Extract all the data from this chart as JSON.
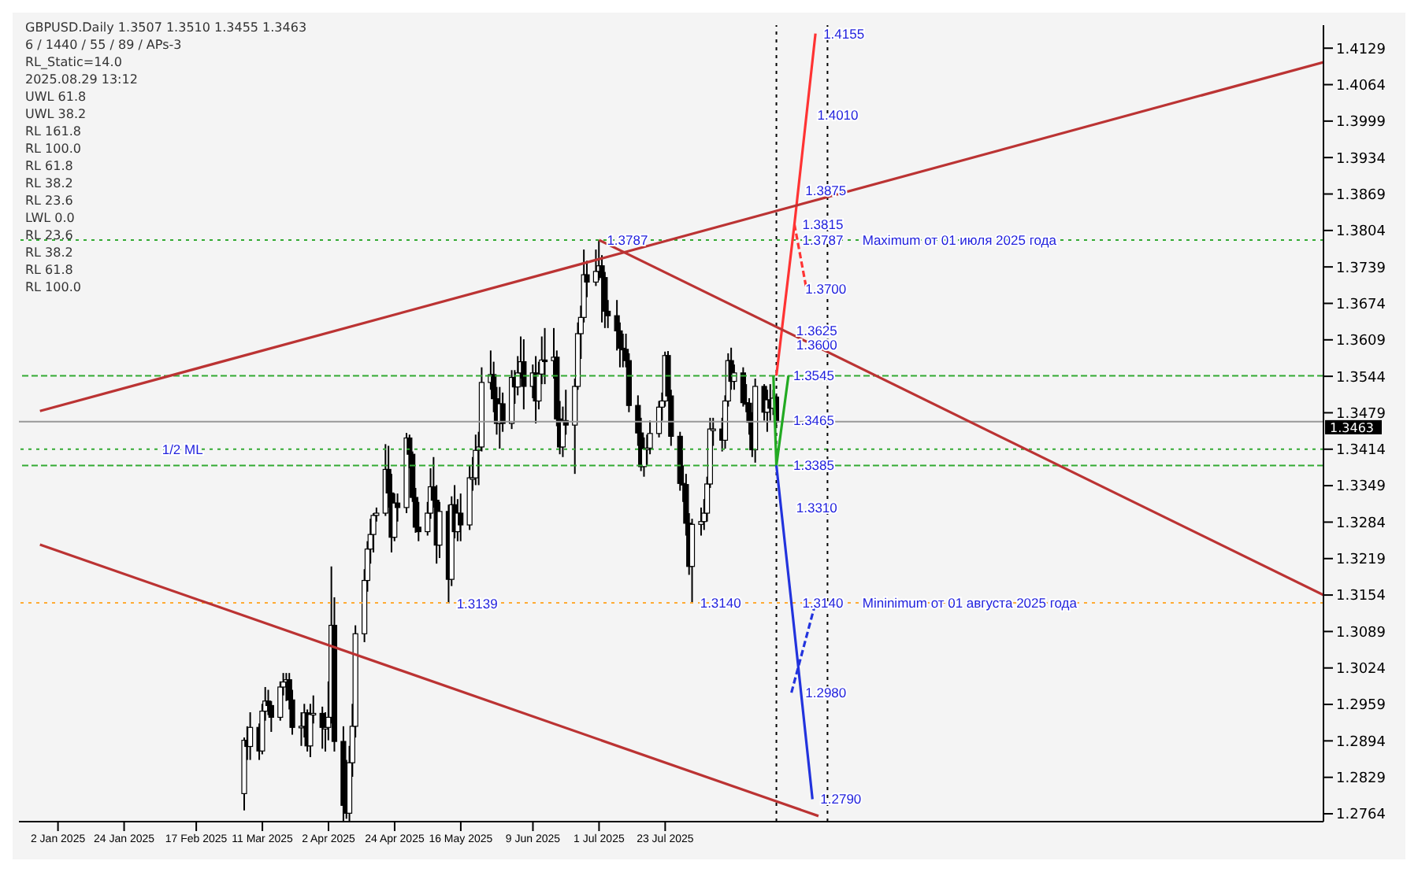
{
  "chart_data": {
    "type": "candlestick",
    "title": "GBPUSD.Daily 1.3507 1.3510 1.3455 1.3463",
    "color": "#000000",
    "x": [
      "2025-03-05",
      "2025-03-06",
      "2025-03-07",
      "2025-03-10",
      "2025-03-11",
      "2025-03-12",
      "2025-03-13",
      "2025-03-14",
      "2025-03-17",
      "2025-03-18",
      "2025-03-19",
      "2025-03-20",
      "2025-03-21",
      "2025-03-24",
      "2025-03-25",
      "2025-03-26",
      "2025-03-27",
      "2025-03-28",
      "2025-03-31",
      "2025-04-01",
      "2025-04-02",
      "2025-04-03",
      "2025-04-04",
      "2025-04-07",
      "2025-04-08",
      "2025-04-09",
      "2025-04-10",
      "2025-04-11",
      "2025-04-14",
      "2025-04-15",
      "2025-04-16",
      "2025-04-17",
      "2025-04-18",
      "2025-04-21",
      "2025-04-22",
      "2025-04-23",
      "2025-04-24",
      "2025-04-25",
      "2025-04-28",
      "2025-04-29",
      "2025-04-30",
      "2025-05-01",
      "2025-05-02",
      "2025-05-05",
      "2025-05-06",
      "2025-05-07",
      "2025-05-08",
      "2025-05-09",
      "2025-05-12",
      "2025-05-13",
      "2025-05-14",
      "2025-05-15",
      "2025-05-16",
      "2025-05-19",
      "2025-05-20",
      "2025-05-21",
      "2025-05-22",
      "2025-05-23",
      "2025-05-26",
      "2025-05-27",
      "2025-05-28",
      "2025-05-29",
      "2025-05-30",
      "2025-06-02",
      "2025-06-03",
      "2025-06-04",
      "2025-06-05",
      "2025-06-06",
      "2025-06-09",
      "2025-06-10",
      "2025-06-11",
      "2025-06-12",
      "2025-06-13",
      "2025-06-16",
      "2025-06-17",
      "2025-06-18",
      "2025-06-19",
      "2025-06-20",
      "2025-06-23",
      "2025-06-24",
      "2025-06-25",
      "2025-06-26",
      "2025-06-27",
      "2025-06-30",
      "2025-07-01",
      "2025-07-02",
      "2025-07-03",
      "2025-07-04",
      "2025-07-07",
      "2025-07-08",
      "2025-07-09",
      "2025-07-10",
      "2025-07-11",
      "2025-07-14",
      "2025-07-15",
      "2025-07-16",
      "2025-07-17",
      "2025-07-18",
      "2025-07-21",
      "2025-07-22",
      "2025-07-23",
      "2025-07-24",
      "2025-07-25",
      "2025-07-28",
      "2025-07-29",
      "2025-07-30",
      "2025-07-31",
      "2025-08-01",
      "2025-08-04",
      "2025-08-05",
      "2025-08-06",
      "2025-08-07",
      "2025-08-08",
      "2025-08-11",
      "2025-08-12",
      "2025-08-13",
      "2025-08-14",
      "2025-08-15",
      "2025-08-18",
      "2025-08-19",
      "2025-08-20",
      "2025-08-21",
      "2025-08-22",
      "2025-08-25",
      "2025-08-26",
      "2025-08-27",
      "2025-08-28",
      "2025-08-29"
    ],
    "ohlc": [
      [
        1.28,
        1.29,
        1.277,
        1.2895
      ],
      [
        1.2895,
        1.292,
        1.286,
        1.2884
      ],
      [
        1.2884,
        1.2945,
        1.286,
        1.2918
      ],
      [
        1.2918,
        1.2925,
        1.286,
        1.2876
      ],
      [
        1.2876,
        1.296,
        1.287,
        1.2947
      ],
      [
        1.2947,
        1.299,
        1.293,
        1.2965
      ],
      [
        1.2965,
        1.2985,
        1.294,
        1.2957
      ],
      [
        1.2957,
        1.2965,
        1.291,
        1.2936
      ],
      [
        1.2936,
        1.3,
        1.293,
        1.299
      ],
      [
        1.299,
        1.3015,
        1.2975,
        1.2999
      ],
      [
        1.2999,
        1.3015,
        1.2965,
        1.3003
      ],
      [
        1.3003,
        1.3015,
        1.295,
        1.2967
      ],
      [
        1.2967,
        1.2985,
        1.2905,
        1.2918
      ],
      [
        1.2918,
        1.2945,
        1.2885,
        1.292
      ],
      [
        1.292,
        1.296,
        1.29,
        1.2944
      ],
      [
        1.2944,
        1.295,
        1.2875,
        1.2885
      ],
      [
        1.2885,
        1.296,
        1.2865,
        1.2941
      ],
      [
        1.2941,
        1.2975,
        1.2925,
        1.2943
      ],
      [
        1.2943,
        1.2955,
        1.288,
        1.2918
      ],
      [
        1.2918,
        1.2945,
        1.2875,
        1.2918
      ],
      [
        1.2918,
        1.3,
        1.2895,
        1.2936
      ],
      [
        1.2936,
        1.3205,
        1.2925,
        1.31
      ],
      [
        1.31,
        1.315,
        1.2875,
        1.2893
      ],
      [
        1.2893,
        1.292,
        1.2751,
        1.2779
      ],
      [
        1.2779,
        1.286,
        1.2755,
        1.2765
      ],
      [
        1.2765,
        1.2885,
        1.2751,
        1.2855
      ],
      [
        1.2855,
        1.296,
        1.283,
        1.292
      ],
      [
        1.292,
        1.31,
        1.29,
        1.3085
      ],
      [
        1.3085,
        1.32,
        1.307,
        1.318
      ],
      [
        1.318,
        1.325,
        1.316,
        1.3236
      ],
      [
        1.3236,
        1.329,
        1.321,
        1.3262
      ],
      [
        1.3262,
        1.33,
        1.323,
        1.3296
      ],
      [
        1.3296,
        1.331,
        1.3285,
        1.33
      ],
      [
        1.33,
        1.3423,
        1.3295,
        1.3378
      ],
      [
        1.3378,
        1.342,
        1.331,
        1.3336
      ],
      [
        1.3336,
        1.337,
        1.323,
        1.3257
      ],
      [
        1.3257,
        1.3335,
        1.325,
        1.3318
      ],
      [
        1.3318,
        1.3335,
        1.3285,
        1.331
      ],
      [
        1.331,
        1.3443,
        1.33,
        1.3434
      ],
      [
        1.3434,
        1.344,
        1.338,
        1.3405
      ],
      [
        1.3405,
        1.341,
        1.332,
        1.3328
      ],
      [
        1.3328,
        1.3345,
        1.3265,
        1.3275
      ],
      [
        1.3275,
        1.332,
        1.325,
        1.3267
      ],
      [
        1.3267,
        1.332,
        1.326,
        1.33
      ],
      [
        1.33,
        1.338,
        1.329,
        1.3347
      ],
      [
        1.3347,
        1.34,
        1.331,
        1.3323
      ],
      [
        1.3323,
        1.335,
        1.321,
        1.3243
      ],
      [
        1.3243,
        1.332,
        1.322,
        1.3303
      ],
      [
        1.3303,
        1.3315,
        1.3139,
        1.3182
      ],
      [
        1.3182,
        1.333,
        1.317,
        1.3315
      ],
      [
        1.3315,
        1.335,
        1.3255,
        1.3267
      ],
      [
        1.3267,
        1.3325,
        1.325,
        1.33
      ],
      [
        1.33,
        1.3335,
        1.325,
        1.3279
      ],
      [
        1.3279,
        1.3385,
        1.327,
        1.3363
      ],
      [
        1.3363,
        1.34,
        1.334,
        1.3363
      ],
      [
        1.3363,
        1.344,
        1.335,
        1.3412
      ],
      [
        1.3412,
        1.3445,
        1.335,
        1.3418
      ],
      [
        1.3418,
        1.356,
        1.341,
        1.3533
      ],
      [
        1.3533,
        1.359,
        1.352,
        1.3547
      ],
      [
        1.3547,
        1.357,
        1.348,
        1.3504
      ],
      [
        1.3504,
        1.3525,
        1.344,
        1.346
      ],
      [
        1.346,
        1.3525,
        1.3415,
        1.3495
      ],
      [
        1.3495,
        1.3515,
        1.3445,
        1.346
      ],
      [
        1.346,
        1.3555,
        1.345,
        1.3542
      ],
      [
        1.3542,
        1.3555,
        1.3495,
        1.3525
      ],
      [
        1.3525,
        1.358,
        1.351,
        1.355
      ],
      [
        1.355,
        1.3615,
        1.354,
        1.357
      ],
      [
        1.357,
        1.361,
        1.3485,
        1.3526
      ],
      [
        1.3526,
        1.3565,
        1.3505,
        1.355
      ],
      [
        1.355,
        1.358,
        1.346,
        1.35
      ],
      [
        1.35,
        1.357,
        1.3485,
        1.3548
      ],
      [
        1.3548,
        1.3615,
        1.353,
        1.3573
      ],
      [
        1.3573,
        1.363,
        1.353,
        1.3572
      ],
      [
        1.3572,
        1.363,
        1.354,
        1.3578
      ],
      [
        1.3578,
        1.359,
        1.3455,
        1.3468
      ],
      [
        1.3468,
        1.35,
        1.3405,
        1.3418
      ],
      [
        1.3418,
        1.349,
        1.34,
        1.3465
      ],
      [
        1.3465,
        1.352,
        1.344,
        1.3457
      ],
      [
        1.3457,
        1.354,
        1.337,
        1.3526
      ],
      [
        1.3526,
        1.364,
        1.352,
        1.362
      ],
      [
        1.362,
        1.367,
        1.3575,
        1.3649
      ],
      [
        1.3649,
        1.377,
        1.364,
        1.3725
      ],
      [
        1.3725,
        1.375,
        1.3685,
        1.3712
      ],
      [
        1.3712,
        1.377,
        1.3705,
        1.3731
      ],
      [
        1.3731,
        1.3787,
        1.3715,
        1.3741
      ],
      [
        1.3741,
        1.376,
        1.364,
        1.372
      ],
      [
        1.372,
        1.373,
        1.363,
        1.366
      ],
      [
        1.366,
        1.368,
        1.363,
        1.3652
      ],
      [
        1.3652,
        1.368,
        1.359,
        1.3625
      ],
      [
        1.3625,
        1.364,
        1.356,
        1.3594
      ],
      [
        1.3594,
        1.362,
        1.356,
        1.3592
      ],
      [
        1.3592,
        1.362,
        1.356,
        1.3572
      ],
      [
        1.3572,
        1.3585,
        1.348,
        1.3492
      ],
      [
        1.3492,
        1.351,
        1.342,
        1.3443
      ],
      [
        1.3443,
        1.347,
        1.3375,
        1.3383
      ],
      [
        1.3383,
        1.3435,
        1.3365,
        1.3415
      ],
      [
        1.3415,
        1.344,
        1.3385,
        1.3416
      ],
      [
        1.3416,
        1.3465,
        1.3405,
        1.3442
      ],
      [
        1.3442,
        1.35,
        1.3435,
        1.3489
      ],
      [
        1.3489,
        1.3515,
        1.3465,
        1.35
      ],
      [
        1.35,
        1.3588,
        1.349,
        1.3581
      ],
      [
        1.3581,
        1.3589,
        1.35,
        1.3509
      ],
      [
        1.3509,
        1.352,
        1.342,
        1.3437
      ],
      [
        1.3437,
        1.3445,
        1.334,
        1.3353
      ],
      [
        1.3353,
        1.3385,
        1.332,
        1.3351
      ],
      [
        1.3351,
        1.337,
        1.326,
        1.3282
      ],
      [
        1.3282,
        1.33,
        1.319,
        1.3205
      ],
      [
        1.3205,
        1.329,
        1.314,
        1.328
      ],
      [
        1.328,
        1.331,
        1.326,
        1.3285
      ],
      [
        1.3285,
        1.3325,
        1.327,
        1.33
      ],
      [
        1.33,
        1.3365,
        1.3285,
        1.3352
      ],
      [
        1.3352,
        1.347,
        1.3345,
        1.345
      ],
      [
        1.345,
        1.347,
        1.342,
        1.345
      ],
      [
        1.345,
        1.347,
        1.341,
        1.343
      ],
      [
        1.343,
        1.351,
        1.3415,
        1.35
      ],
      [
        1.35,
        1.3585,
        1.349,
        1.3572
      ],
      [
        1.3572,
        1.3595,
        1.352,
        1.3535
      ],
      [
        1.3535,
        1.3565,
        1.352,
        1.355
      ],
      [
        1.355,
        1.356,
        1.349,
        1.3497
      ],
      [
        1.3497,
        1.353,
        1.348,
        1.3496
      ],
      [
        1.3496,
        1.3505,
        1.344,
        1.3462
      ],
      [
        1.3462,
        1.348,
        1.34,
        1.3413
      ],
      [
        1.3413,
        1.354,
        1.339,
        1.3526
      ],
      [
        1.3526,
        1.353,
        1.3465,
        1.348
      ],
      [
        1.348,
        1.352,
        1.3445,
        1.3502
      ],
      [
        1.3502,
        1.353,
        1.3465,
        1.3487
      ],
      [
        1.3487,
        1.352,
        1.3475,
        1.3505
      ],
      [
        1.3507,
        1.351,
        1.3455,
        1.3463
      ]
    ],
    "series": [
      {
        "type": "line",
        "color": "#ff3333",
        "x": [
          "2025-08-29",
          "2025-09-04",
          "2025-09-11"
        ],
        "values": [
          1.3545,
          1.3815,
          1.4155
        ]
      },
      {
        "type": "line",
        "color": "#ff3333",
        "line_style": "dashed",
        "x": [
          "2025-09-04",
          "2025-09-08"
        ],
        "values": [
          1.3815,
          1.37
        ]
      },
      {
        "type": "line",
        "color": "#22aa22",
        "x": [
          "2025-08-28",
          "2025-08-29",
          "2025-09-02"
        ],
        "values": [
          1.3545,
          1.3385,
          1.3545
        ]
      },
      {
        "type": "line",
        "color": "#2233dd",
        "x": [
          "2025-08-29",
          "2025-09-03",
          "2025-09-10"
        ],
        "values": [
          1.3385,
          1.314,
          1.279
        ]
      },
      {
        "type": "line",
        "color": "#2233dd",
        "line_style": "dashed",
        "x": [
          "2025-09-03",
          "2025-09-11"
        ],
        "values": [
          1.298,
          1.314
        ]
      },
      {
        "type": "line",
        "color": "#bb3333",
        "x": [
          "2024-12-27",
          "2026-02-27"
        ],
        "values": [
          1.3482,
          1.4104
        ]
      },
      {
        "type": "line",
        "color": "#bb3333",
        "x": [
          "2025-07-01",
          "2026-02-27"
        ],
        "values": [
          1.3787,
          1.3154
        ]
      },
      {
        "type": "line",
        "color": "#bb3333",
        "x": [
          "2024-12-27",
          "2025-09-12"
        ],
        "values": [
          1.3244,
          1.276
        ]
      }
    ],
    "xlim": [
      "2024-12-20",
      "2026-02-27"
    ],
    "xticks": [
      {
        "value": "2025-01-02",
        "label": "2 Jan 2025"
      },
      {
        "value": "2025-01-24",
        "label": "24 Jan 2025"
      },
      {
        "value": "2025-02-17",
        "label": "17 Feb 2025"
      },
      {
        "value": "2025-03-11",
        "label": "11 Mar 2025"
      },
      {
        "value": "2025-04-02",
        "label": "2 Apr 2025"
      },
      {
        "value": "2025-04-24",
        "label": "24 Apr 2025"
      },
      {
        "value": "2025-05-16",
        "label": "16 May 2025"
      },
      {
        "value": "2025-06-09",
        "label": "9 Jun 2025"
      },
      {
        "value": "2025-07-01",
        "label": "1 Jul 2025"
      },
      {
        "value": "2025-07-23",
        "label": "23 Jul 2025"
      }
    ],
    "ylim": [
      1.275,
      1.417
    ],
    "yticks": [
      1.2764,
      1.2829,
      1.2894,
      1.2959,
      1.3024,
      1.3089,
      1.3154,
      1.3219,
      1.3284,
      1.3349,
      1.3414,
      1.3479,
      1.3544,
      1.3609,
      1.3674,
      1.3739,
      1.3804,
      1.3869,
      1.3934,
      1.3999,
      1.4064,
      1.4129
    ],
    "ref_lines": [
      {
        "axis": "y",
        "value": 1.3463,
        "label": "1.3463",
        "color": "#999999",
        "line_style": "solid"
      },
      {
        "axis": "y",
        "value": 1.3545,
        "color": "#33aa33",
        "line_style": "dashed"
      },
      {
        "axis": "y",
        "value": 1.3385,
        "color": "#33aa33",
        "line_style": "dashed"
      },
      {
        "axis": "y",
        "value": 1.3787,
        "color": "#33aa33",
        "line_style": "dotted"
      },
      {
        "axis": "y",
        "value": 1.3414,
        "color": "#33aa33",
        "line_style": "dotted"
      },
      {
        "axis": "y",
        "value": 1.314,
        "color": "#ffaa33",
        "line_style": "dotted"
      },
      {
        "axis": "x",
        "value": "2025-08-29",
        "color": "#000000",
        "line_style": "dotted"
      },
      {
        "axis": "x",
        "value": "2025-09-15",
        "color": "#000000",
        "line_style": "dotted"
      }
    ],
    "annotations": [
      "6 / 1440 / 55 / 89 / APs-3",
      "RL_Static=14.0",
      "2025.08.29 13:12",
      "UWL 61.8",
      "UWL 38.2",
      "RL 161.8",
      "RL 100.0",
      "RL 61.8",
      "RL 38.2",
      "RL 23.6",
      "LWL 0.0",
      "RL 23.6",
      "RL 38.2",
      "RL 61.8",
      "RL 100.0",
      {
        "text": "1.3787",
        "x": "2025-07-01",
        "y": 1.3787
      },
      {
        "text": "1.3139",
        "x": "2025-05-12",
        "y": 1.3139
      },
      {
        "text": "1.3140",
        "x": "2025-08-01",
        "y": 1.314
      },
      {
        "text": "1.4155",
        "x": "2025-09-11",
        "y": 1.4155
      },
      {
        "text": "1.4010",
        "x": "2025-09-09",
        "y": 1.401
      },
      {
        "text": "1.3875",
        "x": "2025-09-05",
        "y": 1.3875
      },
      {
        "text": "1.3815",
        "x": "2025-09-04",
        "y": 1.3815
      },
      {
        "text": "1.3787",
        "x": "2025-09-04",
        "y": 1.3787
      },
      {
        "text": "Maximum от 01 июля 2025 года",
        "x": "2025-09-24",
        "y": 1.3787
      },
      {
        "text": "1.3700",
        "x": "2025-09-05",
        "y": 1.37
      },
      {
        "text": "1.3625",
        "x": "2025-09-02",
        "y": 1.3625
      },
      {
        "text": "1.3600",
        "x": "2025-09-02",
        "y": 1.36
      },
      {
        "text": "1.3545",
        "x": "2025-09-01",
        "y": 1.3545
      },
      {
        "text": "1.3465",
        "x": "2025-09-01",
        "y": 1.3465
      },
      {
        "text": "1.3385",
        "x": "2025-09-01",
        "y": 1.3385
      },
      {
        "text": "1.3310",
        "x": "2025-09-02",
        "y": 1.331
      },
      {
        "text": "1.3140",
        "x": "2025-09-04",
        "y": 1.314
      },
      {
        "text": "Mininimum от 01 августа 2025 года",
        "x": "2025-09-24",
        "y": 1.314
      },
      {
        "text": "1.2980",
        "x": "2025-09-05",
        "y": 1.298
      },
      {
        "text": "1.2790",
        "x": "2025-09-10",
        "y": 1.279
      },
      {
        "text": "1/2 ML",
        "x": "2025-02-03",
        "y": 1.3414
      }
    ]
  }
}
